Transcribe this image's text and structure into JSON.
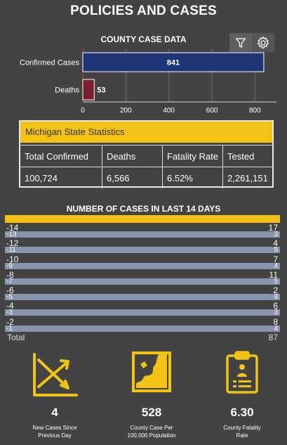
{
  "title": "POLICIES AND CASES",
  "county_chart": {
    "title": "COUNTY CASE DATA",
    "toolbar": {
      "filter_icon": "filter-icon",
      "settings_icon": "gear-icon"
    },
    "colors": {
      "confirmed": "#1f3577",
      "deaths": "#7a1f2b",
      "grid": "#6a6a6a"
    }
  },
  "chart_data": {
    "type": "bar",
    "orientation": "horizontal",
    "categories": [
      "Confirmed Cases",
      "Deaths"
    ],
    "values": [
      841,
      53
    ],
    "value_labels": [
      "841",
      "53"
    ],
    "xlim": [
      0,
      900
    ],
    "xticks": [
      0,
      200,
      400,
      600,
      800
    ],
    "xtick_labels": [
      "0",
      "200",
      "400",
      "600",
      "800"
    ],
    "grid": true
  },
  "state_stats": {
    "header": "Michigan State Statistics",
    "columns": [
      "Total Confirmed",
      "Deaths",
      "Fatality Rate",
      "Tested"
    ],
    "values": [
      "100,724",
      "6,566",
      "6.52%",
      "2,261,151"
    ]
  },
  "last14": {
    "title": "NUMBER OF CASES IN LAST 14 DAYS",
    "rows": [
      {
        "day": "-14",
        "cases": "17"
      },
      {
        "day": "-13",
        "cases": "3"
      },
      {
        "day": "-12",
        "cases": "4"
      },
      {
        "day": "-11",
        "cases": "5"
      },
      {
        "day": "-10",
        "cases": "7"
      },
      {
        "day": "-9",
        "cases": "4"
      },
      {
        "day": "-8",
        "cases": "11"
      },
      {
        "day": "-7",
        "cases": "5"
      },
      {
        "day": "-6",
        "cases": "2"
      },
      {
        "day": "-5",
        "cases": "8"
      },
      {
        "day": "-4",
        "cases": "6"
      },
      {
        "day": "-3",
        "cases": "3"
      },
      {
        "day": "-2",
        "cases": "8"
      },
      {
        "day": "-1",
        "cases": "4"
      }
    ],
    "total_label": "Total",
    "total_value": "87"
  },
  "kpis": [
    {
      "icon": "crossing-arrows-icon",
      "value": "4",
      "label_line1": "New Cases Since",
      "label_line2": "Previous Day"
    },
    {
      "icon": "map-region-icon",
      "value": "528",
      "label_line1": "County Case Per",
      "label_line2": "100,000 Population"
    },
    {
      "icon": "clipboard-person-icon",
      "value": "6.30",
      "label_line1": "County Fatality",
      "label_line2": "Rate"
    }
  ],
  "accent_color": "#f2c316"
}
